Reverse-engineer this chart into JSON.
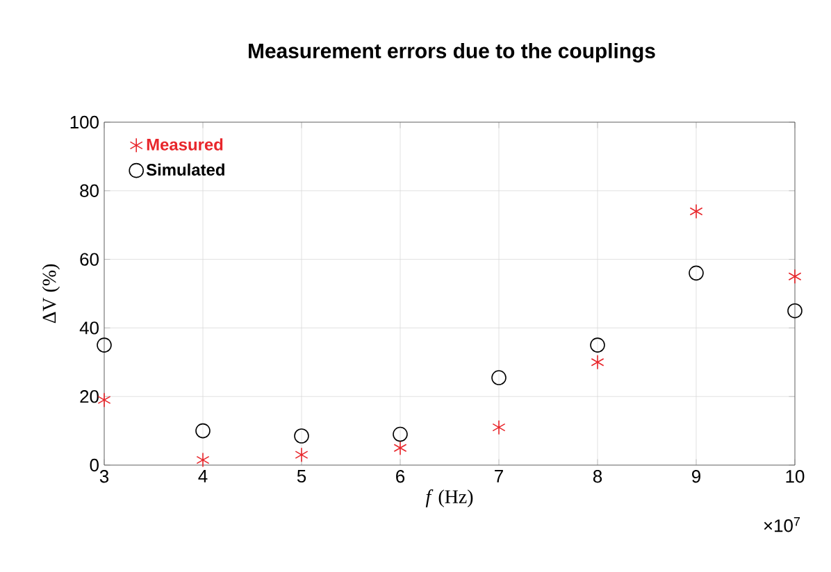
{
  "chart_data": {
    "type": "scatter",
    "title": "Measurement errors due to the couplings",
    "xlabel": "*f* (Hz)",
    "ylabel": "ΔV (%)",
    "x": [
      3,
      4,
      5,
      6,
      7,
      8,
      9,
      10
    ],
    "series": [
      {
        "name": "Measured",
        "color": "#e8262b",
        "marker": "cross",
        "values": [
          19,
          1.5,
          3,
          5,
          11,
          30,
          74,
          55
        ]
      },
      {
        "name": "Simulated",
        "color": "#000000",
        "marker": "circle",
        "values": [
          35,
          10,
          8.5,
          9,
          25.5,
          35,
          56,
          45
        ]
      }
    ],
    "xlim": [
      3,
      10
    ],
    "xticks": [
      3,
      4,
      5,
      6,
      7,
      8,
      9,
      10
    ],
    "ylim": [
      0,
      100
    ],
    "yticks": [
      0,
      20,
      40,
      60,
      80,
      100
    ],
    "grid": true,
    "legend": "top left",
    "annotations": [
      "×10$^{7}$"
    ]
  }
}
